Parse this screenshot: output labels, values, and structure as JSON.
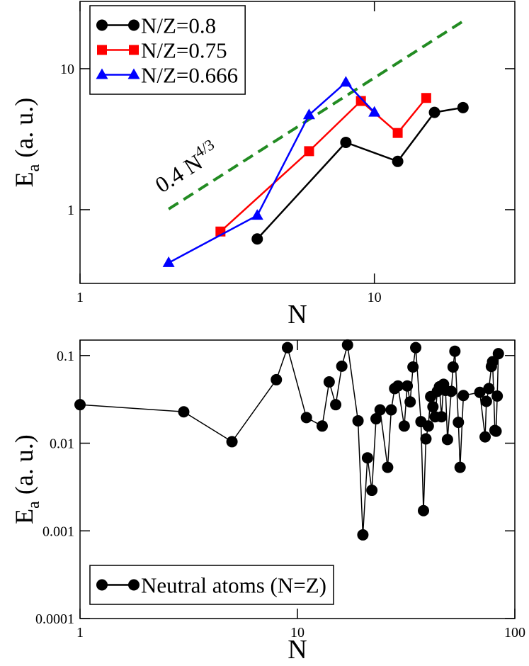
{
  "chart_data": [
    {
      "type": "line",
      "xlabel": "N",
      "ylabel": {
        "text": "E",
        "sub": "a",
        "rest": "(a. u.)"
      },
      "xscale": "log",
      "yscale": "log",
      "xlim": [
        1,
        30
      ],
      "ylim": [
        0.3,
        30
      ],
      "xticks": [
        1,
        10
      ],
      "yticks": [
        1,
        10
      ],
      "legend": "upper left",
      "series": [
        {
          "name": "N/Z=0.8",
          "color": "#000000",
          "marker": "circle",
          "x": [
            4,
            8,
            12,
            16,
            20
          ],
          "values": [
            0.62,
            3.0,
            2.2,
            4.9,
            5.3
          ]
        },
        {
          "name": "N/Z=0.75",
          "color": "#ff0000",
          "marker": "square",
          "x": [
            3,
            6,
            9,
            12,
            15
          ],
          "values": [
            0.7,
            2.6,
            5.9,
            3.5,
            6.2
          ]
        },
        {
          "name": "N/Z=0.666",
          "color": "#0000ff",
          "marker": "triangle",
          "x": [
            2,
            4,
            6,
            8,
            10
          ],
          "values": [
            0.42,
            0.91,
            4.7,
            8.0,
            4.9
          ]
        }
      ],
      "lines": [
        {
          "x": [
            2,
            20
          ],
          "values": [
            1.01,
            21.7
          ],
          "color": "#228b22",
          "dash": true
        }
      ],
      "annotation": {
        "text": "0.4 N",
        "sup": "4/3"
      }
    },
    {
      "type": "line",
      "xlabel": "N",
      "ylabel": {
        "text": "E",
        "sub": "a",
        "rest": "(a. u.)"
      },
      "xscale": "log",
      "yscale": "log",
      "xlim": [
        1,
        100
      ],
      "ylim": [
        0.0001,
        0.15
      ],
      "xticks": [
        1,
        10,
        100
      ],
      "yticks": [
        0.0001,
        0.001,
        0.01,
        0.1
      ],
      "legend": "lower left",
      "series": [
        {
          "name": "Neutral atoms (N=Z)",
          "color": "#000000",
          "marker": "circle",
          "x": [
            1,
            3,
            5,
            8,
            9,
            11,
            13,
            14,
            15,
            16,
            17,
            19,
            20,
            21,
            22,
            23,
            24,
            26,
            27,
            28,
            29,
            31,
            32,
            33,
            34,
            35,
            37,
            38,
            39,
            40,
            41,
            42,
            43,
            44,
            45,
            46,
            47,
            48,
            49,
            51,
            52,
            53,
            55,
            56,
            58,
            69,
            73,
            74,
            76,
            78,
            79,
            81,
            82,
            83,
            84
          ],
          "values": [
            0.0275,
            0.0228,
            0.0104,
            0.053,
            0.123,
            0.0196,
            0.0157,
            0.05,
            0.0275,
            0.0755,
            0.132,
            0.018,
            0.0009,
            0.0068,
            0.0029,
            0.019,
            0.024,
            0.0053,
            0.024,
            0.042,
            0.045,
            0.0157,
            0.045,
            0.0296,
            0.074,
            0.123,
            0.0176,
            0.0017,
            0.0112,
            0.0157,
            0.034,
            0.026,
            0.02,
            0.039,
            0.044,
            0.02,
            0.047,
            0.04,
            0.011,
            0.039,
            0.074,
            0.112,
            0.0173,
            0.0053,
            0.035,
            0.038,
            0.0118,
            0.03,
            0.042,
            0.075,
            0.085,
            0.014,
            0.0137,
            0.0345,
            0.105
          ]
        }
      ]
    }
  ]
}
